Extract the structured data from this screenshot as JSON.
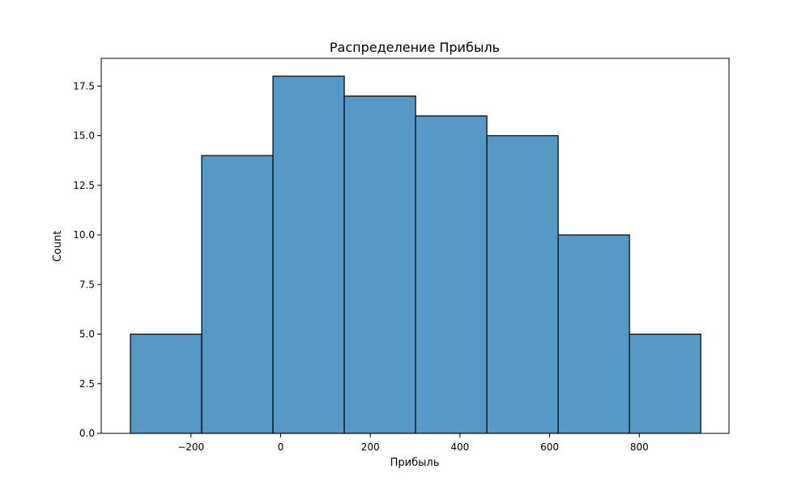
{
  "chart_data": {
    "type": "bar",
    "title": "Распределение Прибыль",
    "xlabel": "Прибыль",
    "ylabel": "Count",
    "bin_edges": [
      -335,
      -176,
      -17,
      142,
      301,
      460,
      619,
      778,
      937
    ],
    "values": [
      5,
      14,
      18,
      17,
      16,
      15,
      10,
      5
    ],
    "xlim": [
      -400,
      1000
    ],
    "ylim": [
      0,
      18.9
    ],
    "xticks": [
      -200,
      0,
      200,
      400,
      600,
      800
    ],
    "xtick_labels": [
      "−200",
      "0",
      "200",
      "400",
      "600",
      "800"
    ],
    "yticks": [
      0,
      2.5,
      5,
      7.5,
      10,
      12.5,
      15,
      17.5
    ],
    "ytick_labels": [
      "0.0",
      "2.5",
      "5.0",
      "7.5",
      "10.0",
      "12.5",
      "15.0",
      "17.5"
    ],
    "grid": false,
    "bar_color": "#5799c6",
    "edge_color": "#000000"
  }
}
